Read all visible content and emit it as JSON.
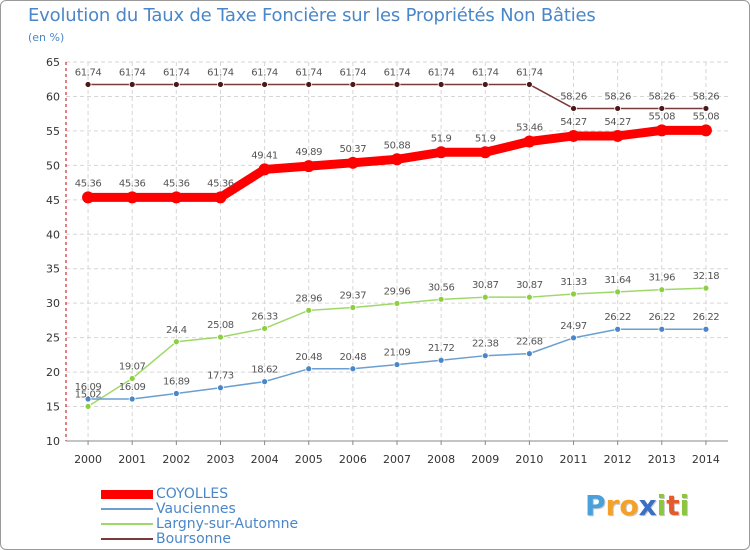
{
  "header": {
    "title": "Evolution du Taux de Taxe Foncière sur les Propriétés Non Bâties",
    "unit": "(en %)"
  },
  "logo": {
    "text": "Proxiti",
    "letters": [
      "P",
      "r",
      "o",
      "x",
      "i",
      "t",
      "i"
    ],
    "colors": [
      "#4aa0dc",
      "#f4a12a",
      "#f4a12a",
      "#3a6fc4",
      "#8cc63f",
      "#e65a2a",
      "#8cc63f"
    ]
  },
  "chart_data": {
    "type": "line",
    "title": "Evolution du Taux de Taxe Foncière sur les Propriétés Non Bâties",
    "ylabel": "(en %)",
    "xlabel": "",
    "grid": true,
    "ylim": [
      10,
      65
    ],
    "yticks": [
      10,
      15,
      20,
      25,
      30,
      35,
      40,
      45,
      50,
      55,
      60,
      65
    ],
    "x": [
      "2000",
      "2001",
      "2002",
      "2003",
      "2004",
      "2005",
      "2006",
      "2007",
      "2008",
      "2009",
      "2010",
      "2011",
      "2012",
      "2013",
      "2014"
    ],
    "series": [
      {
        "name": "COYOLLES",
        "color": "#ff0000",
        "values": [
          45.36,
          45.36,
          45.36,
          45.36,
          49.41,
          49.89,
          50.37,
          50.88,
          51.9,
          51.9,
          53.46,
          54.27,
          54.27,
          55.08,
          55.08
        ],
        "labels": [
          "45.36",
          "45.36",
          "45.36",
          "45.36",
          "49.41",
          "49.89",
          "50.37",
          "50.88",
          "51.9",
          "51.9",
          "53.46",
          "54.27",
          "54.27",
          "55.08",
          "55.08"
        ]
      },
      {
        "name": "Vauciennes",
        "color": "#6a9fd0",
        "values": [
          16.09,
          16.09,
          16.89,
          17.73,
          18.62,
          20.48,
          20.48,
          21.09,
          21.72,
          22.38,
          22.68,
          24.97,
          26.22,
          26.22,
          26.22
        ],
        "labels": [
          "16.09",
          "16.09",
          "16.89",
          "17.73",
          "18.62",
          "20.48",
          "20.48",
          "21.09",
          "21.72",
          "22.38",
          "22.68",
          "24.97",
          "26.22",
          "26.22",
          "26.22"
        ]
      },
      {
        "name": "Largny-sur-Automne",
        "color": "#9fd86a",
        "values": [
          15.02,
          19.07,
          24.4,
          25.08,
          26.33,
          28.96,
          29.37,
          29.96,
          30.56,
          30.87,
          30.87,
          31.33,
          31.64,
          31.96,
          32.18
        ],
        "labels": [
          "15.02",
          "19.07",
          "24.4",
          "25.08",
          "26.33",
          "28.96",
          "29.37",
          "29.96",
          "30.56",
          "30.87",
          "30.87",
          "31.33",
          "31.64",
          "31.96",
          "32.18"
        ]
      },
      {
        "name": "Boursonne",
        "color": "#7a3a3a",
        "values": [
          61.74,
          61.74,
          61.74,
          61.74,
          61.74,
          61.74,
          61.74,
          61.74,
          61.74,
          61.74,
          61.74,
          58.26,
          58.26,
          58.26,
          58.26
        ],
        "labels": [
          "61.74",
          "61.74",
          "61.74",
          "61.74",
          "61.74",
          "61.74",
          "61.74",
          "61.74",
          "61.74",
          "61.74",
          "61.74",
          "58.26",
          "58.26",
          "58.26",
          "58.26"
        ]
      }
    ]
  }
}
